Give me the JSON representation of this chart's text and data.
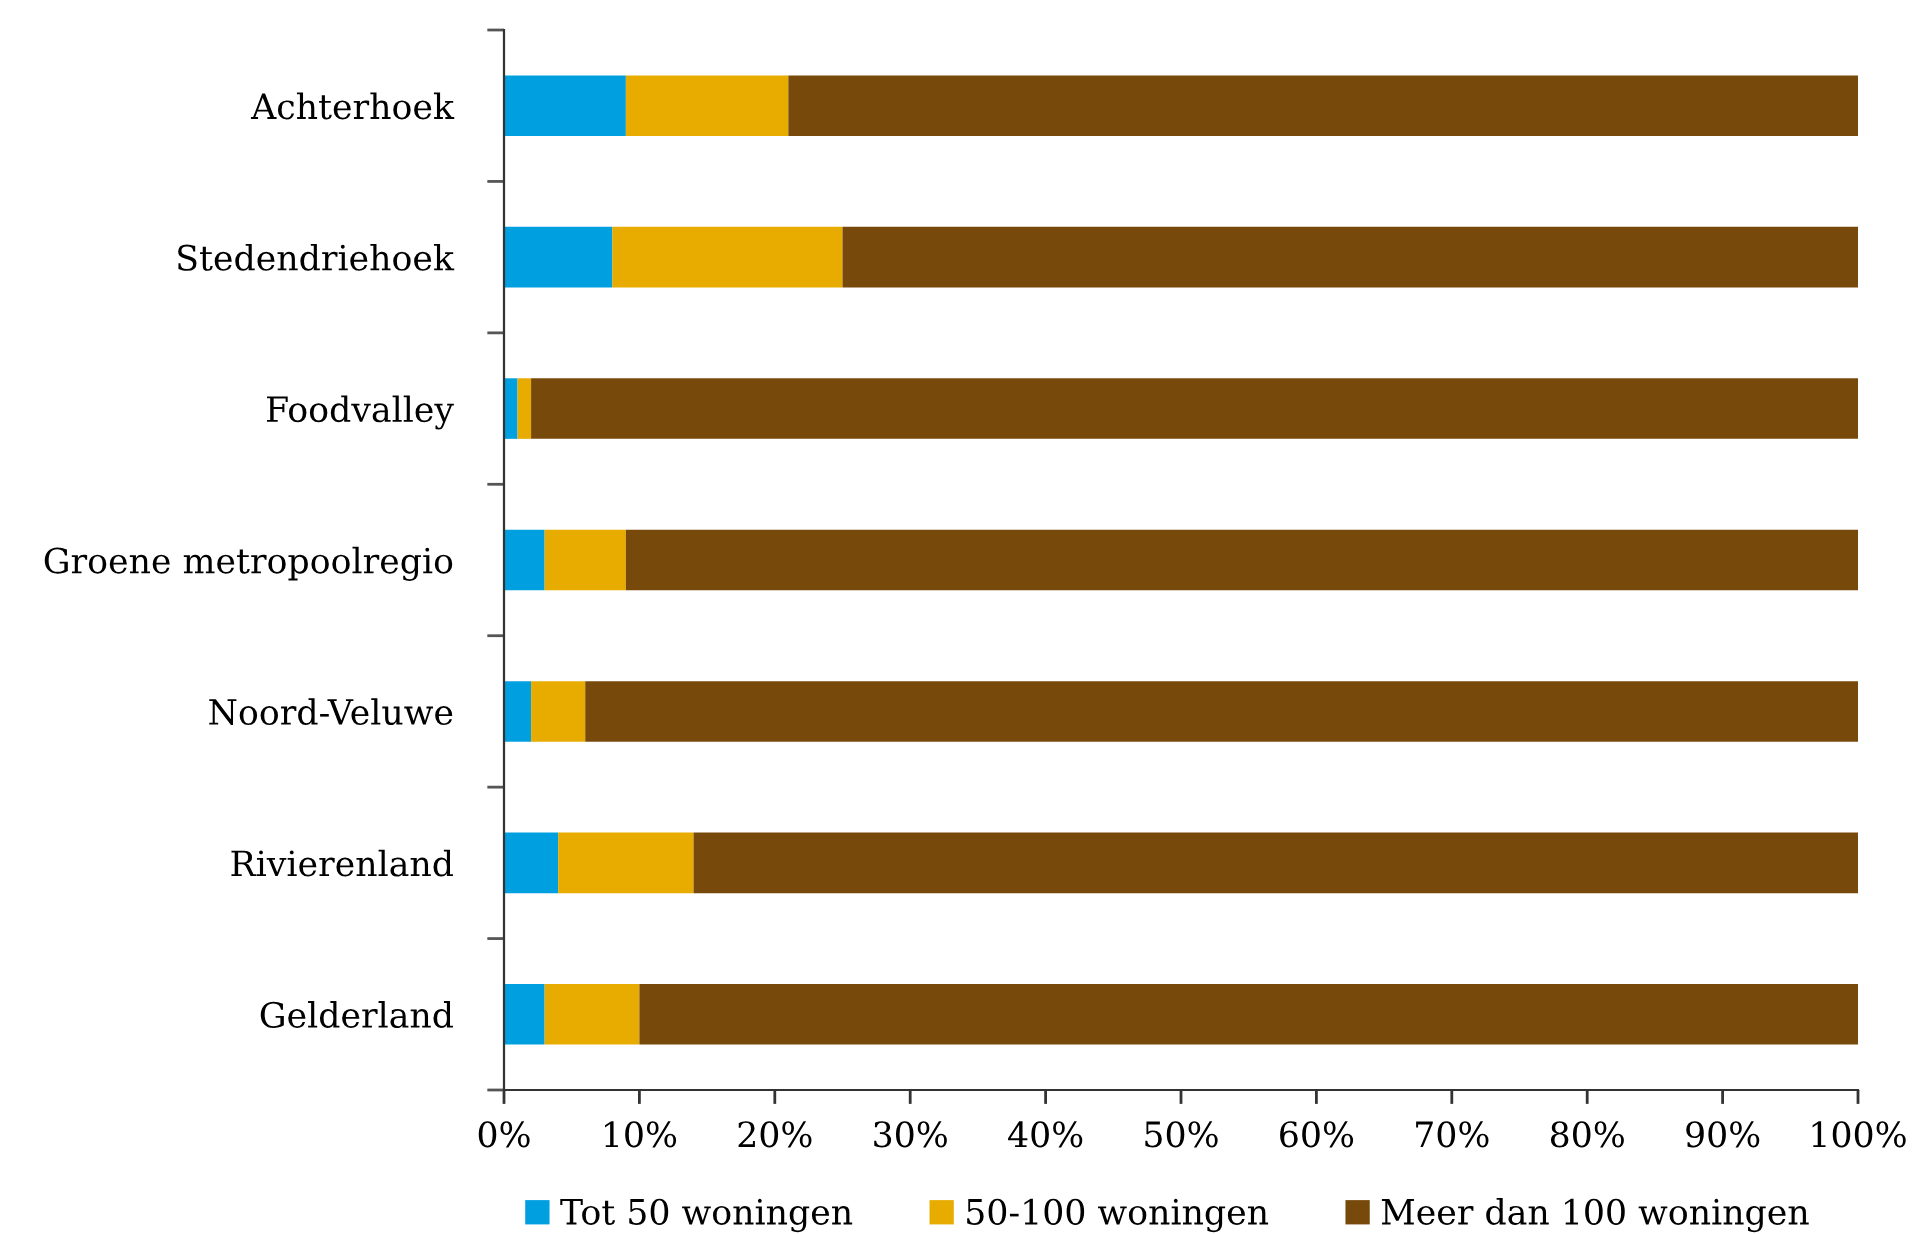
{
  "chart_data": {
    "type": "bar",
    "orientation": "horizontal",
    "stacked": true,
    "categories": [
      "Achterhoek",
      "Stedendriehoek",
      "Foodvalley",
      "Groene metropoolregio",
      "Noord-Veluwe",
      "Rivierenland",
      "Gelderland"
    ],
    "series": [
      {
        "name": "Tot 50 woningen",
        "color": "#009fe0",
        "values": [
          9,
          8,
          1,
          3,
          2,
          4,
          3
        ]
      },
      {
        "name": "50-100 woningen",
        "color": "#e8ab00",
        "values": [
          12,
          17,
          1,
          6,
          4,
          10,
          7
        ]
      },
      {
        "name": "Meer dan 100 woningen",
        "color": "#774a0b",
        "values": [
          79,
          75,
          98,
          91,
          94,
          86,
          90
        ]
      }
    ],
    "xlim": [
      0,
      100
    ],
    "xticks": [
      {
        "value": 0,
        "label": "0%"
      },
      {
        "value": 10,
        "label": "10%"
      },
      {
        "value": 20,
        "label": "20%"
      },
      {
        "value": 30,
        "label": "30%"
      },
      {
        "value": 40,
        "label": "40%"
      },
      {
        "value": 50,
        "label": "50%"
      },
      {
        "value": 60,
        "label": "60%"
      },
      {
        "value": 70,
        "label": "70%"
      },
      {
        "value": 80,
        "label": "80%"
      },
      {
        "value": 90,
        "label": "90%"
      },
      {
        "value": 100,
        "label": "100%"
      }
    ],
    "grid": false,
    "legend": "bottom"
  }
}
